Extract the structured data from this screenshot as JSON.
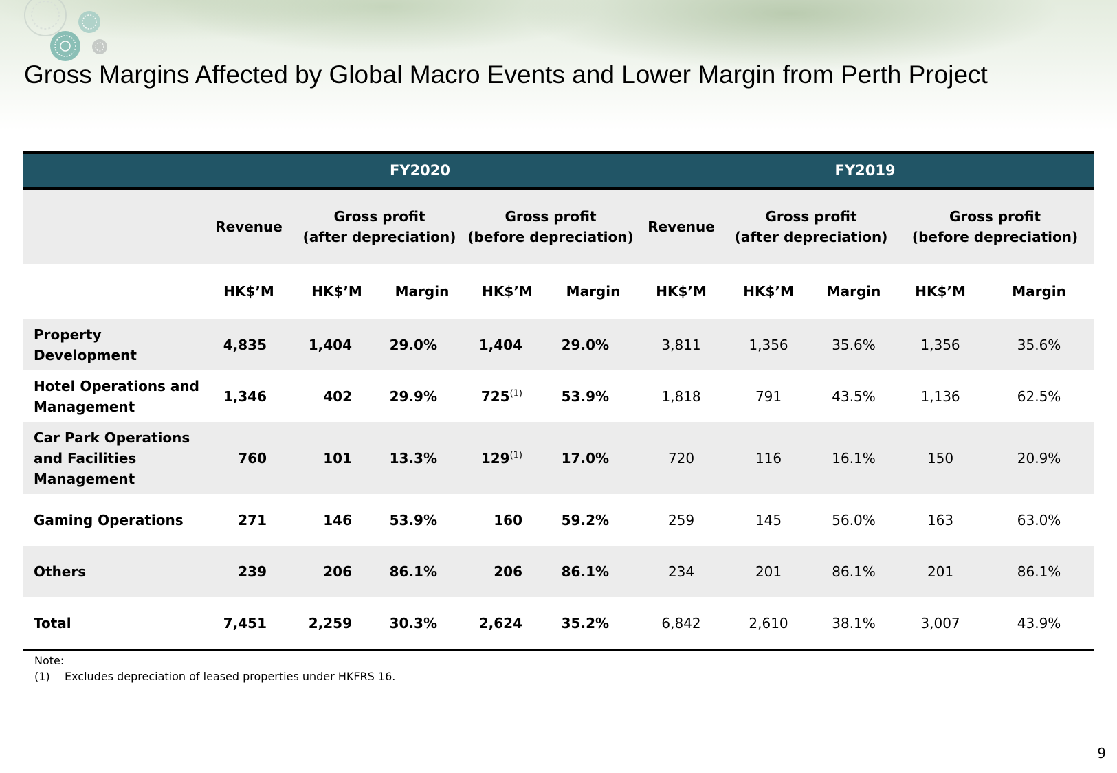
{
  "slide": {
    "title": "Gross Margins Affected by Global Macro Events and Lower Margin from Perth Project",
    "page_number": "9"
  },
  "table": {
    "fy_headers": [
      "FY2020",
      "FY2019"
    ],
    "group_headers": {
      "revenue": "Revenue",
      "gp_after_line1": "Gross profit",
      "gp_after_line2": "(after depreciation)",
      "gp_before_line1": "Gross profit",
      "gp_before_line2": "(before depreciation)"
    },
    "unit_headers": {
      "hkd": "HK$’M",
      "margin": "Margin"
    },
    "rows": [
      {
        "label_line1": "Property",
        "label_line2": "Development",
        "label_line3": "",
        "fy2020": {
          "revenue": "4,835",
          "gp_after": "1,404",
          "margin_after": "29.0%",
          "gp_before": "1,404",
          "gp_before_note": "",
          "margin_before": "29.0%"
        },
        "fy2019": {
          "revenue": "3,811",
          "gp_after": "1,356",
          "margin_after": "35.6%",
          "gp_before": "1,356",
          "margin_before": "35.6%"
        }
      },
      {
        "label_line1": "Hotel Operations and",
        "label_line2": "Management",
        "label_line3": "",
        "fy2020": {
          "revenue": "1,346",
          "gp_after": "402",
          "margin_after": "29.9%",
          "gp_before": "725",
          "gp_before_note": "(1)",
          "margin_before": "53.9%"
        },
        "fy2019": {
          "revenue": "1,818",
          "gp_after": "791",
          "margin_after": "43.5%",
          "gp_before": "1,136",
          "margin_before": "62.5%"
        }
      },
      {
        "label_line1": "Car Park Operations",
        "label_line2": "and Facilities",
        "label_line3": "Management",
        "fy2020": {
          "revenue": "760",
          "gp_after": "101",
          "margin_after": "13.3%",
          "gp_before": "129",
          "gp_before_note": "(1)",
          "margin_before": "17.0%"
        },
        "fy2019": {
          "revenue": "720",
          "gp_after": "116",
          "margin_after": "16.1%",
          "gp_before": "150",
          "margin_before": "20.9%"
        }
      },
      {
        "label_line1": "Gaming Operations",
        "label_line2": "",
        "label_line3": "",
        "fy2020": {
          "revenue": "271",
          "gp_after": "146",
          "margin_after": "53.9%",
          "gp_before": "160",
          "gp_before_note": "",
          "margin_before": "59.2%"
        },
        "fy2019": {
          "revenue": "259",
          "gp_after": "145",
          "margin_after": "56.0%",
          "gp_before": "163",
          "margin_before": "63.0%"
        }
      },
      {
        "label_line1": "Others",
        "label_line2": "",
        "label_line3": "",
        "fy2020": {
          "revenue": "239",
          "gp_after": "206",
          "margin_after": "86.1%",
          "gp_before": "206",
          "gp_before_note": "",
          "margin_before": "86.1%"
        },
        "fy2019": {
          "revenue": "234",
          "gp_after": "201",
          "margin_after": "86.1%",
          "gp_before": "201",
          "margin_before": "86.1%"
        }
      },
      {
        "label_line1": "Total",
        "label_line2": "",
        "label_line3": "",
        "fy2020": {
          "revenue": "7,451",
          "gp_after": "2,259",
          "margin_after": "30.3%",
          "gp_before": "2,624",
          "gp_before_note": "",
          "margin_before": "35.2%"
        },
        "fy2019": {
          "revenue": "6,842",
          "gp_after": "2,610",
          "margin_after": "38.1%",
          "gp_before": "3,007",
          "margin_before": "43.9%"
        }
      }
    ]
  },
  "note": {
    "heading": "Note:",
    "items": [
      {
        "num": "(1)",
        "text": "Excludes depreciation of leased properties under HKFRS 16."
      }
    ]
  },
  "colors": {
    "header_band": "#215566",
    "row_shade": "#ececec"
  }
}
